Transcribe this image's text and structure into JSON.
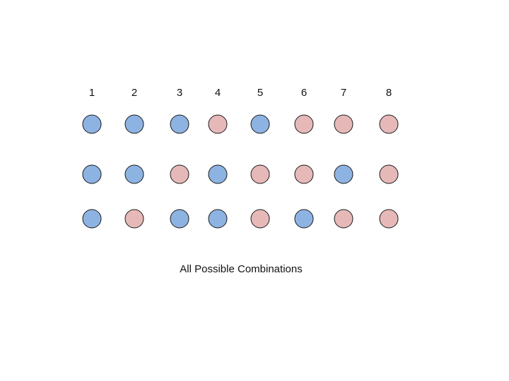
{
  "column_labels": [
    "1",
    "2",
    "3",
    "4",
    "5",
    "6",
    "7",
    "8"
  ],
  "rows": [
    [
      "blue",
      "blue",
      "blue",
      "pink",
      "blue",
      "pink",
      "pink",
      "pink"
    ],
    [
      "blue",
      "blue",
      "pink",
      "blue",
      "pink",
      "pink",
      "blue",
      "pink"
    ],
    [
      "blue",
      "pink",
      "blue",
      "blue",
      "pink",
      "blue",
      "pink",
      "pink"
    ]
  ],
  "colors": {
    "blue": "#8db3e2",
    "pink": "#e6b9b8"
  },
  "caption": "All Possible Combinations"
}
